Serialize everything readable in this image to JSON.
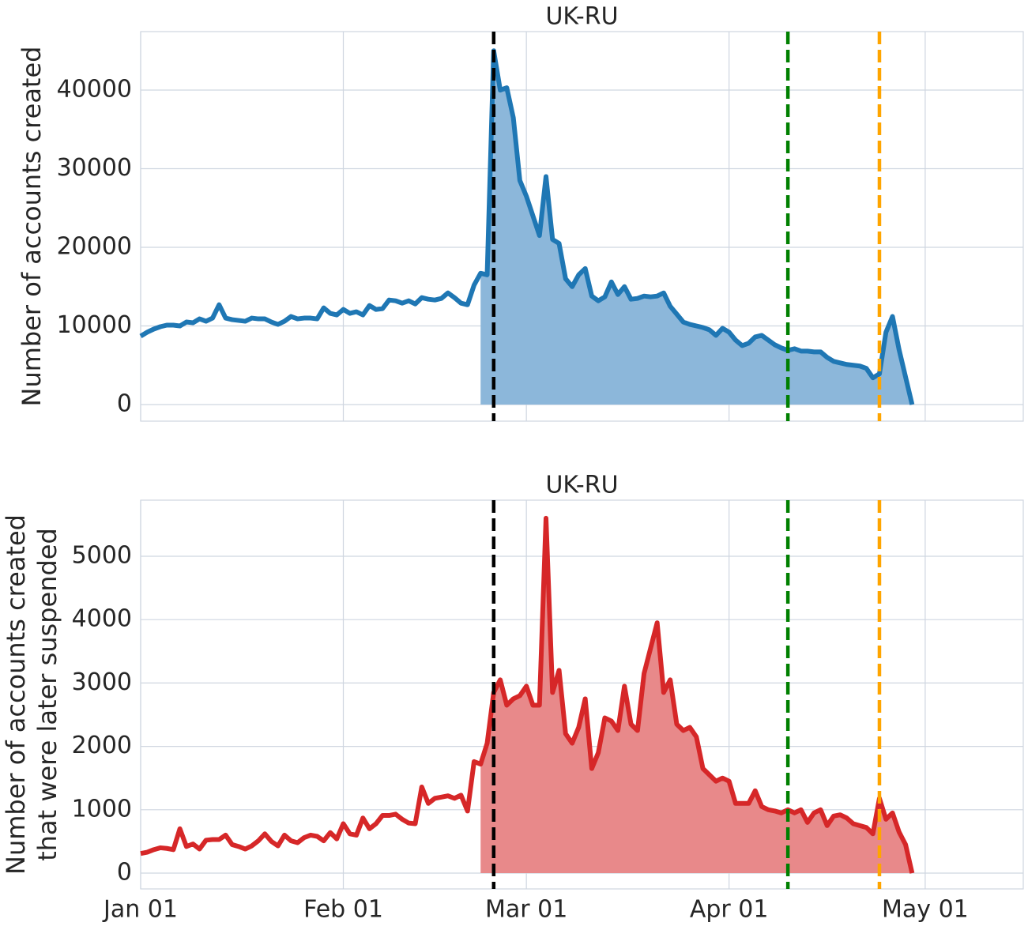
{
  "chart_data": [
    {
      "type": "line",
      "title": "UK-RU",
      "ylabel": "Number of accounts created",
      "x": [
        0,
        1,
        2,
        3,
        4,
        5,
        6,
        7,
        8,
        9,
        10,
        11,
        12,
        13,
        14,
        15,
        16,
        17,
        18,
        19,
        20,
        21,
        22,
        23,
        24,
        25,
        26,
        27,
        28,
        29,
        30,
        31,
        32,
        33,
        34,
        35,
        36,
        37,
        38,
        39,
        40,
        41,
        42,
        43,
        44,
        45,
        46,
        47,
        48,
        49,
        50,
        51,
        52,
        53,
        54,
        55,
        56,
        57,
        58,
        59,
        60,
        61,
        62,
        63,
        64,
        65,
        66,
        67,
        68,
        69,
        70,
        71,
        72,
        73,
        74,
        75,
        76,
        77,
        78,
        79,
        80,
        81,
        82,
        83,
        84,
        85,
        86,
        87,
        88,
        89,
        90,
        91,
        92,
        93,
        94,
        95,
        96,
        97,
        98,
        99,
        100,
        101,
        102,
        103,
        104,
        105,
        106,
        107,
        108,
        109,
        110,
        111,
        112,
        113,
        114,
        115,
        116,
        117,
        118
      ],
      "values": [
        8700,
        9200,
        9600,
        9900,
        10100,
        10100,
        10000,
        10500,
        10400,
        10900,
        10600,
        11000,
        12700,
        11000,
        10800,
        10700,
        10600,
        11000,
        10900,
        10900,
        10500,
        10200,
        10600,
        11200,
        10900,
        11000,
        11000,
        10900,
        12300,
        11600,
        11400,
        12100,
        11600,
        11800,
        11400,
        12600,
        12100,
        12200,
        13300,
        13200,
        12900,
        13200,
        12800,
        13600,
        13400,
        13300,
        13500,
        14200,
        13600,
        12900,
        12700,
        15200,
        16700,
        16500,
        45000,
        40000,
        40300,
        36500,
        28500,
        26500,
        24000,
        21500,
        29000,
        21000,
        20500,
        16000,
        15000,
        16500,
        17300,
        13800,
        13200,
        13700,
        15600,
        14000,
        15000,
        13400,
        13500,
        13800,
        13700,
        13800,
        14200,
        12500,
        11500,
        10500,
        10200,
        10000,
        9800,
        9500,
        8800,
        9700,
        9200,
        8200,
        7500,
        7800,
        8600,
        8800,
        8200,
        7600,
        7200,
        6900,
        7100,
        6800,
        6800,
        6700,
        6700,
        6000,
        5500,
        5300,
        5100,
        5000,
        4900,
        4600,
        3400,
        3900,
        9200,
        11200,
        7000,
        3500,
        0
      ],
      "color": "#1f77b4",
      "fill_color": "#8cb7da",
      "shade_from": 52,
      "xlim": [
        0,
        135
      ],
      "xticks": [
        0,
        31,
        59,
        90,
        120
      ],
      "ylim": [
        -2110,
        47440
      ],
      "yticks": [
        0,
        10000,
        20000,
        30000,
        40000
      ],
      "grid": true,
      "vlines": [
        {
          "x": 54,
          "color": "#000000"
        },
        {
          "x": 99,
          "color": "#008000"
        },
        {
          "x": 113,
          "color": "#ffa500"
        }
      ]
    },
    {
      "type": "line",
      "title": "UK-RU",
      "ylabel": [
        "Number of accounts created",
        "that were later suspended"
      ],
      "x": [
        0,
        1,
        2,
        3,
        4,
        5,
        6,
        7,
        8,
        9,
        10,
        11,
        12,
        13,
        14,
        15,
        16,
        17,
        18,
        19,
        20,
        21,
        22,
        23,
        24,
        25,
        26,
        27,
        28,
        29,
        30,
        31,
        32,
        33,
        34,
        35,
        36,
        37,
        38,
        39,
        40,
        41,
        42,
        43,
        44,
        45,
        46,
        47,
        48,
        49,
        50,
        51,
        52,
        53,
        54,
        55,
        56,
        57,
        58,
        59,
        60,
        61,
        62,
        63,
        64,
        65,
        66,
        67,
        68,
        69,
        70,
        71,
        72,
        73,
        74,
        75,
        76,
        77,
        78,
        79,
        80,
        81,
        82,
        83,
        84,
        85,
        86,
        87,
        88,
        89,
        90,
        91,
        92,
        93,
        94,
        95,
        96,
        97,
        98,
        99,
        100,
        101,
        102,
        103,
        104,
        105,
        106,
        107,
        108,
        109,
        110,
        111,
        112,
        113,
        114,
        115,
        116,
        117,
        118
      ],
      "values": [
        310,
        330,
        370,
        400,
        390,
        370,
        700,
        420,
        460,
        380,
        520,
        530,
        530,
        600,
        450,
        420,
        380,
        430,
        510,
        620,
        500,
        430,
        600,
        510,
        480,
        560,
        600,
        580,
        510,
        640,
        540,
        780,
        620,
        600,
        870,
        700,
        780,
        910,
        910,
        930,
        850,
        790,
        780,
        1360,
        1100,
        1180,
        1200,
        1220,
        1180,
        1230,
        980,
        1760,
        1720,
        2050,
        2850,
        3050,
        2650,
        2750,
        2800,
        2950,
        2650,
        2650,
        5600,
        2850,
        3200,
        2200,
        2050,
        2300,
        2750,
        1650,
        1900,
        2450,
        2400,
        2250,
        2950,
        2350,
        2250,
        3150,
        3550,
        3950,
        2850,
        3050,
        2350,
        2250,
        2300,
        2150,
        1650,
        1550,
        1450,
        1500,
        1450,
        1100,
        1100,
        1100,
        1300,
        1050,
        1000,
        980,
        950,
        1000,
        950,
        1000,
        800,
        950,
        1000,
        750,
        900,
        920,
        870,
        780,
        750,
        720,
        620,
        1180,
        850,
        950,
        650,
        450,
        0
      ],
      "color": "#d62728",
      "fill_color": "#e8898a",
      "shade_from": 52,
      "xlim": [
        0,
        135
      ],
      "xticks": [
        {
          "value": 0,
          "label": "Jan 01"
        },
        {
          "value": 31,
          "label": "Feb 01"
        },
        {
          "value": 59,
          "label": "Mar 01"
        },
        {
          "value": 90,
          "label": "Apr 01"
        },
        {
          "value": 120,
          "label": "May 01"
        }
      ],
      "ylim": [
        -249,
        5885
      ],
      "yticks": [
        0,
        1000,
        2000,
        3000,
        4000,
        5000
      ],
      "grid": true,
      "vlines": [
        {
          "x": 54,
          "color": "#000000"
        },
        {
          "x": 99,
          "color": "#008000"
        },
        {
          "x": 113,
          "color": "#ffa500"
        }
      ]
    }
  ]
}
